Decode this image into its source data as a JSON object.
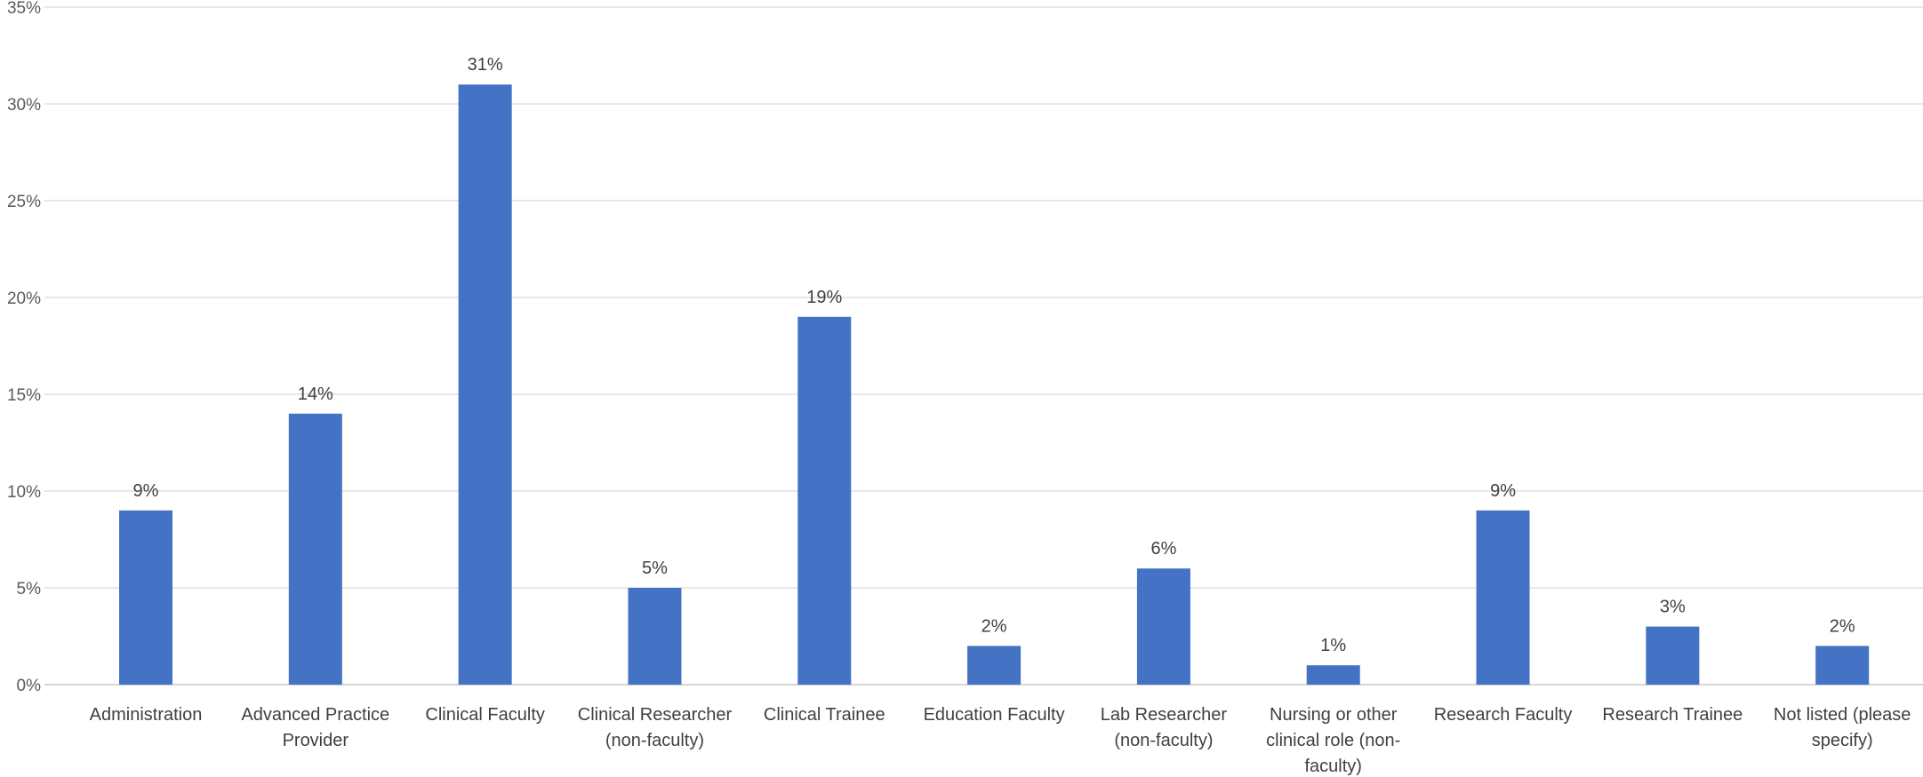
{
  "chart_data": {
    "type": "bar",
    "categories": [
      "Administration",
      "Advanced Practice Provider",
      "Clinical Faculty",
      "Clinical Researcher (non-faculty)",
      "Clinical Trainee",
      "Education Faculty",
      "Lab Researcher (non-faculty)",
      "Nursing or other clinical role (non-faculty)",
      "Research Faculty",
      "Research Trainee",
      "Not listed (please specify)"
    ],
    "category_lines": [
      [
        "Administration"
      ],
      [
        "Advanced Practice",
        "Provider"
      ],
      [
        "Clinical Faculty"
      ],
      [
        "Clinical Researcher",
        "(non-faculty)"
      ],
      [
        "Clinical Trainee"
      ],
      [
        "Education Faculty"
      ],
      [
        "Lab Researcher",
        "(non-faculty)"
      ],
      [
        "Nursing or other",
        "clinical role (non-",
        "faculty)"
      ],
      [
        "Research Faculty"
      ],
      [
        "Research Trainee"
      ],
      [
        "Not listed (please",
        "specify)"
      ]
    ],
    "values": [
      9,
      14,
      31,
      5,
      19,
      2,
      6,
      1,
      9,
      3,
      2
    ],
    "data_labels": [
      "9%",
      "14%",
      "31%",
      "5%",
      "19%",
      "2%",
      "6%",
      "1%",
      "9%",
      "3%",
      "2%"
    ],
    "y_ticks": [
      0,
      5,
      10,
      15,
      20,
      25,
      30,
      35
    ],
    "y_tick_labels": [
      "0%",
      "5%",
      "10%",
      "15%",
      "20%",
      "25%",
      "30%",
      "35%"
    ],
    "ylim": [
      0,
      35
    ],
    "grid": true,
    "legend": "none",
    "title": "",
    "xlabel": "",
    "ylabel": "",
    "colors": {
      "bar": "#4472C4",
      "grid": "#D9D9D9",
      "axis": "#BFBFBF"
    }
  }
}
